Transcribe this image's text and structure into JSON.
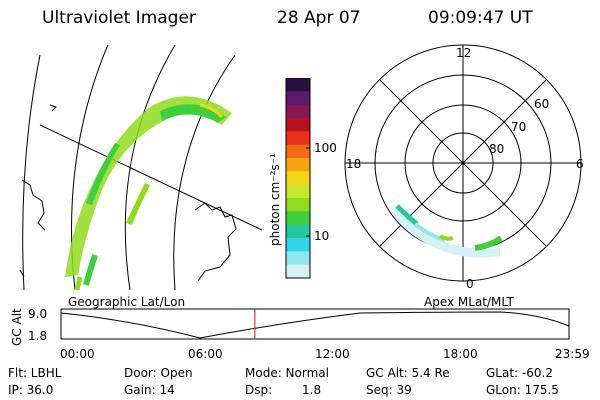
{
  "header": {
    "title": "Ultraviolet Imager",
    "date": "28 Apr 07",
    "time": "09:09:47 UT"
  },
  "colorbar": {
    "unit_label": "photon cm⁻²s⁻¹",
    "ticks": [
      "100",
      "10"
    ],
    "colors": [
      "#2a1040",
      "#5b1b6b",
      "#8a1850",
      "#b8101d",
      "#e8301a",
      "#f26b12",
      "#f6a30e",
      "#f3d818",
      "#c8e62a",
      "#8fdc1e",
      "#3fcf3a",
      "#28c6a0",
      "#31d6e6",
      "#8fe7ee",
      "#d4f1f3"
    ]
  },
  "polar": {
    "mlt_labels": {
      "top": "12",
      "left": "18",
      "right": "6",
      "bottom": "0"
    },
    "lat_labels": [
      "60",
      "70",
      "80"
    ]
  },
  "map": {
    "left_label": "Geographic Lat/Lon",
    "right_label": "Apex MLat/MLT"
  },
  "timeline": {
    "ylabel": "GC Alt",
    "y_ticks": [
      "9.0",
      "1.8"
    ],
    "x_ticks": [
      "00:00",
      "06:00",
      "12:00",
      "18:00",
      "23:59"
    ],
    "current_marker_hour": 9.16
  },
  "info": {
    "row1": {
      "filter": "Flt: LBHL",
      "door": "Door: Open",
      "mode": "Mode: Normal",
      "gc_alt": "GC Alt: 5.4 Re",
      "glat": "GLat: -60.2"
    },
    "row2": {
      "ip": "IP: 36.0",
      "gain": "Gain: 14",
      "dsp_label": "Dsp:",
      "dsp_value": "1.8",
      "seq": "Seq: 39",
      "glon": "GLon: 175.5"
    }
  }
}
